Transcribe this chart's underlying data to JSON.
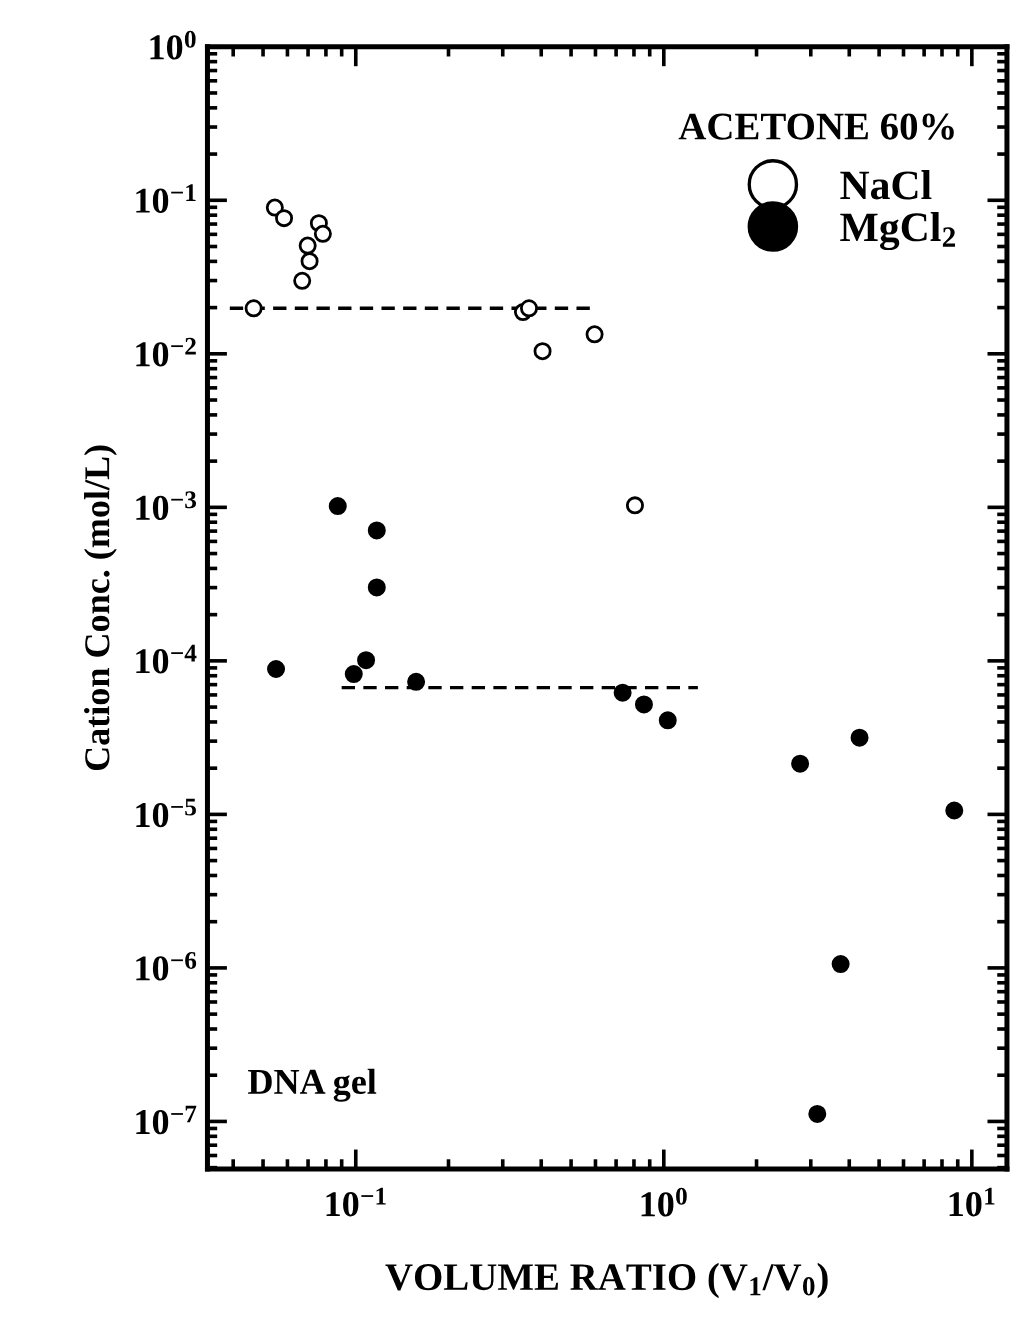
{
  "chart_data": {
    "type": "scatter",
    "xlabel": "VOLUME RATIO (V$_{1}$/V$_{0}$)",
    "ylabel": "Cation Conc. (mol/L)",
    "legend_title": "ACETONE 60%",
    "annotations": [
      "DNA gel"
    ],
    "log": "xy",
    "xlim": [
      0.033,
      13
    ],
    "ylim": [
      4.9e-08,
      1
    ],
    "xticks": [
      {
        "value": 0.1,
        "label": "10$^{−1}$"
      },
      {
        "value": 1,
        "label": "10$^{0}$"
      },
      {
        "value": 10,
        "label": "10$^{1}$"
      }
    ],
    "yticks": [
      {
        "value": 1e-07,
        "label": "10$^{−7}$"
      },
      {
        "value": 1e-06,
        "label": "10$^{−6}$"
      },
      {
        "value": 1e-05,
        "label": "10$^{−5}$"
      },
      {
        "value": 0.0001,
        "label": "10$^{−4}$"
      },
      {
        "value": 0.001,
        "label": "10$^{−3}$"
      },
      {
        "value": 0.01,
        "label": "10$^{−2}$"
      },
      {
        "value": 0.1,
        "label": "10$^{−1}$"
      },
      {
        "value": 1,
        "label": "10$^{0}$"
      }
    ],
    "grid": false,
    "legend": "top right",
    "marker": "circle",
    "series": [
      {
        "name": "NaCl",
        "color": "#ffffff",
        "x": [
          0.0466,
          0.0546,
          0.0585,
          0.067,
          0.0708,
          0.0698,
          0.0759,
          0.0782,
          0.349,
          0.365,
          0.404,
          0.596,
          0.806
        ],
        "values": [
          0.0198,
          0.0897,
          0.0765,
          0.0299,
          0.0401,
          0.0507,
          0.0709,
          0.0605,
          0.0187,
          0.0198,
          0.0104,
          0.0134,
          0.00103
        ]
      },
      {
        "name": "MgCl$_{2}$",
        "color": "#000000",
        "x": [
          0.0551,
          0.0874,
          0.117,
          0.117,
          0.108,
          0.0985,
          0.157,
          0.735,
          0.862,
          1.03,
          2.77,
          4.32,
          8.77,
          3.75,
          3.15
        ],
        "values": [
          8.85e-05,
          0.00102,
          0.000707,
          0.000301,
          0.000101,
          8.2e-05,
          7.3e-05,
          6.2e-05,
          5.2e-05,
          4.1e-05,
          2.14e-05,
          3.16e-05,
          1.06e-05,
          1.06e-06,
          1.12e-07
        ]
      },
      {
        "type": "line",
        "line_style": "dashed",
        "marker": "none",
        "color": "#000000",
        "x": [
          0.039,
          0.61
        ],
        "values": [
          0.0198,
          0.0198
        ]
      },
      {
        "type": "line",
        "line_style": "dashed",
        "marker": "none",
        "color": "#000000",
        "x": [
          0.09,
          1.29
        ],
        "values": [
          6.7e-05,
          6.7e-05
        ]
      }
    ]
  }
}
